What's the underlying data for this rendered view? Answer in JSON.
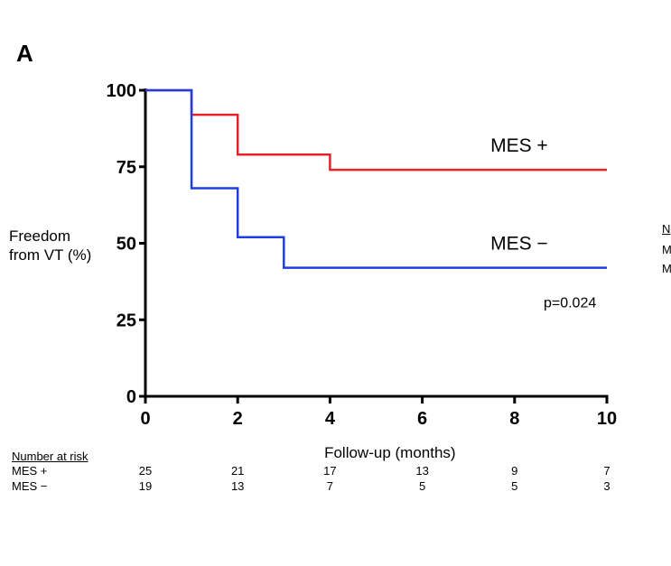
{
  "panel_label": "A",
  "chart_data": {
    "type": "line",
    "subtype": "kaplan-meier step",
    "xlabel": "Follow-up (months)",
    "ylabel_lines": [
      "Freedom",
      "from VT (%)"
    ],
    "xlim": [
      0,
      10
    ],
    "ylim": [
      0,
      100
    ],
    "x_ticks": [
      0,
      2,
      4,
      6,
      8,
      10
    ],
    "y_ticks": [
      0,
      25,
      50,
      75,
      100
    ],
    "x_tick_labels": [
      "0",
      "2",
      "4",
      "6",
      "8",
      "10"
    ],
    "y_tick_labels": [
      "0",
      "25",
      "50",
      "75",
      "100"
    ],
    "series": [
      {
        "name": "MES +",
        "color": "#e8202a",
        "x": [
          0,
          1,
          2,
          4,
          10
        ],
        "y": [
          100,
          92,
          79,
          74,
          74
        ],
        "label_at": [
          8.1,
          80
        ]
      },
      {
        "name": "MES −",
        "color": "#1f3ee0",
        "x": [
          0,
          1,
          2,
          3,
          10
        ],
        "y": [
          100,
          68,
          52,
          42,
          42
        ],
        "label_at": [
          8.1,
          48
        ]
      }
    ],
    "annotation": {
      "text": "p=0.024",
      "at": [
        9.2,
        29
      ]
    }
  },
  "risk_table": {
    "title": "Number at risk",
    "times": [
      0,
      2,
      4,
      6,
      8,
      10
    ],
    "rows": [
      {
        "name": "MES +",
        "values": [
          "25",
          "21",
          "17",
          "13",
          "9",
          "7"
        ]
      },
      {
        "name": "MES −",
        "values": [
          "19",
          "13",
          "7",
          "5",
          "5",
          "3"
        ]
      }
    ]
  },
  "cut_off_panel": {
    "title_initial": "N",
    "row_initials": [
      "M",
      "M"
    ]
  }
}
